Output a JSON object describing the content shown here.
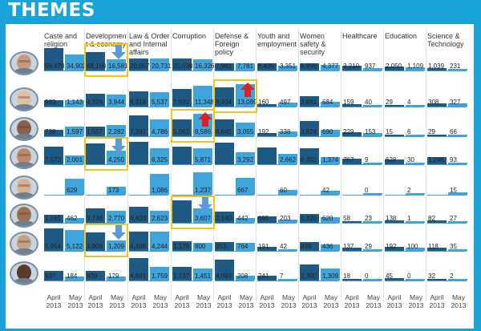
{
  "page": {
    "title": "THEMES"
  },
  "chart_data": {
    "type": "bar",
    "title": "THEMES",
    "periods": [
      "April 2013",
      "May 2013"
    ],
    "period_labels": {
      "april": "April",
      "may": "May",
      "year": "2013"
    },
    "themes": [
      "Caste and religion",
      "Development & economy",
      "Law & Order and Internal affairs",
      "Corruption",
      "Defense & Foreign policy",
      "Youth and employment",
      "Women safety & security",
      "Healthcare",
      "Education",
      "Science & Technology"
    ],
    "theme_display": [
      "Caste and religion",
      "Developmen t & economy",
      "Law & Order and Internal affairs",
      "Corruption",
      "Defense & Foreign policy",
      "Youth and employment",
      "Women safety & security",
      "Healthcare",
      "Education",
      "Science & Technology"
    ],
    "series": [
      {
        "person": "politician-1",
        "april": [
          69478,
          48160,
          20057,
          20038,
          7981,
          6435,
          6996,
          3210,
          2050,
          1039
        ],
        "may": [
          34902,
          16581,
          20731,
          16326,
          7781,
          3351,
          4377,
          937,
          1109,
          231
        ]
      },
      {
        "person": "politician-2",
        "april": [
          983,
          4326,
          6316,
          7931,
          9404,
          160,
          2691,
          159,
          29,
          308
        ],
        "may": [
          1143,
          3944,
          5537,
          11348,
          13089,
          497,
          684,
          40,
          4,
          327
        ]
      },
      {
        "person": "politician-3",
        "april": [
          738,
          1557,
          7391,
          5062,
          4645,
          192,
          3824,
          229,
          15,
          29
        ],
        "may": [
          1597,
          2282,
          4786,
          8586,
          3055,
          338,
          690,
          153,
          6,
          66
        ]
      },
      {
        "person": "politician-4",
        "april": [
          7572,
          9950,
          11988,
          7380,
          11057,
          7019,
          6202,
          767,
          628,
          1246
        ],
        "may": [
          2001,
          4250,
          6325,
          5871,
          3292,
          2662,
          1374,
          9,
          30,
          93
        ]
      },
      {
        "person": "politician-5",
        "april": [
          null,
          null,
          null,
          null,
          null,
          null,
          null,
          null,
          null,
          null
        ],
        "may": [
          629,
          173,
          1086,
          1237,
          667,
          60,
          42,
          0,
          2,
          15
        ]
      },
      {
        "person": "politician-6",
        "april": [
          1161,
          3736,
          4403,
          9052,
          2140,
          695,
          1320,
          58,
          138,
          82
        ],
        "may": [
          462,
          2770,
          2623,
          3607,
          442,
          203,
          620,
          23,
          1,
          27
        ]
      },
      {
        "person": "politician-7",
        "april": [
          5954,
          3908,
          4488,
          1178,
          953,
          191,
          899,
          137,
          192,
          118
        ],
        "may": [
          5122,
          1209,
          4244,
          800,
          764,
          42,
          436,
          29,
          100,
          35
        ]
      },
      {
        "person": "politician-8",
        "april": [
          937,
          909,
          4841,
          1737,
          4092,
          241,
          2390,
          18,
          45,
          32
        ],
        "may": [
          184,
          179,
          1759,
          1451,
          208,
          7,
          1309,
          0,
          0,
          2
        ]
      }
    ],
    "displayed_labels": [
      {
        "april": [
          "69,478",
          "48,160",
          "20,057",
          "20,038",
          "7,981",
          "6,435",
          "6,996",
          "3,210",
          "2,050",
          "1,039"
        ],
        "may": [
          "34,902",
          "16,581",
          "20,731",
          "16,326",
          "7,781",
          "3,351",
          "4,377",
          "937",
          "1,109",
          "231"
        ]
      },
      {
        "april": [
          "983",
          "4,326",
          "6,316",
          "7,931",
          "9,404",
          "160",
          "2,691",
          "159",
          "29",
          "308"
        ],
        "may": [
          "1,143",
          "3,944",
          "5,537",
          "11,348",
          "13,089",
          "497",
          "684",
          "40",
          "4",
          "327"
        ]
      },
      {
        "april": [
          "738",
          "1,557",
          "7,391",
          "5,062",
          "4,645",
          "192",
          "3,824",
          "229",
          "15",
          "29"
        ],
        "may": [
          "1,597",
          "2,282",
          "4,786",
          "8,586",
          "3,055",
          "338",
          "690",
          "153",
          "6",
          "66"
        ]
      },
      {
        "april": [
          "7,572",
          "",
          "",
          "",
          "",
          "",
          "6,202",
          "767",
          "628",
          "1,246"
        ],
        "may": [
          "2,001",
          "4,250",
          "6,325",
          "5,871",
          "3,292",
          "2,662",
          "1,374",
          "9",
          "30",
          "93"
        ]
      },
      {
        "april": [
          "",
          "",
          "",
          "",
          "",
          "",
          "",
          "",
          "",
          ""
        ],
        "may": [
          "629",
          "173",
          "1,086",
          "1,237",
          "667",
          "60",
          "42",
          "0",
          "2",
          "15"
        ]
      },
      {
        "april": [
          "1,161",
          "3,736",
          "4,403",
          "",
          "2,140",
          "695",
          "1,320",
          "58",
          "138",
          "82"
        ],
        "may": [
          "462",
          "2,770",
          "2,623",
          "3,607",
          "442",
          "203",
          "620",
          "23",
          "1",
          "27"
        ]
      },
      {
        "april": [
          "5,954",
          "3,908",
          "4,488",
          "1,178",
          "953",
          "191",
          "899",
          "137",
          "192",
          "118"
        ],
        "may": [
          "5,122",
          "1,209",
          "4,244",
          "800",
          "764",
          "42",
          "436",
          "29",
          "100",
          "35"
        ]
      },
      {
        "april": [
          "937",
          "909",
          "4,841",
          "1,737",
          "4,092",
          "241",
          "2,390",
          "18",
          "45",
          "32"
        ],
        "may": [
          "184",
          "179",
          "1,759",
          "1,451",
          "208",
          "7",
          "1,309",
          "0",
          "0",
          "2"
        ]
      }
    ],
    "highlights": [
      {
        "row": 0,
        "theme": "Development & economy",
        "arrow": "down",
        "arrow_color": "#5b9bd5"
      },
      {
        "row": 1,
        "theme": "Defense & Foreign policy",
        "arrow": "up",
        "arrow_color": "#e02020"
      },
      {
        "row": 2,
        "theme": "Corruption",
        "arrow": "up",
        "arrow_color": "#e02020"
      },
      {
        "row": 3,
        "theme": "Development & economy",
        "arrow": "down",
        "arrow_color": "#5b9bd5"
      },
      {
        "row": 5,
        "theme": "Corruption",
        "arrow": "down",
        "arrow_color": "#5b9bd5"
      },
      {
        "row": 6,
        "theme": "Development & economy",
        "arrow": "down",
        "arrow_color": "#5b9bd5"
      }
    ],
    "colors": {
      "april": "#1f5a85",
      "may": "#3fa3dc",
      "highlight": "#f5c518",
      "background": "#1aa3d9"
    }
  }
}
